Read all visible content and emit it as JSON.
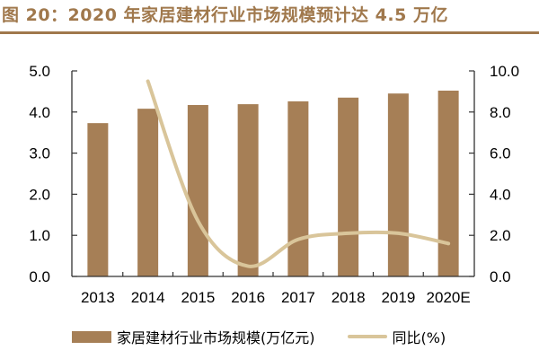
{
  "title": "图 20：2020 年家居建材行业市场规模预计达 4.5 万亿",
  "colors": {
    "bar": "#a67f56",
    "line": "#d9c59a",
    "title": "#a0784c"
  },
  "legend": {
    "bar_label": "家居建材行业市场规模(万亿元)",
    "line_label": "同比(%)"
  },
  "chart_data": {
    "type": "bar+line",
    "title": "2020 年家居建材行业市场规模预计达 4.5 万亿",
    "categories": [
      "2013",
      "2014",
      "2015",
      "2016",
      "2017",
      "2018",
      "2019",
      "2020E"
    ],
    "series": [
      {
        "name": "家居建材行业市场规模(万亿元)",
        "type": "bar",
        "axis": "left",
        "values": [
          3.73,
          4.08,
          4.17,
          4.19,
          4.26,
          4.35,
          4.45,
          4.52
        ]
      },
      {
        "name": "同比(%)",
        "type": "line",
        "axis": "right",
        "values": [
          null,
          9.5,
          2.7,
          0.5,
          1.8,
          2.1,
          2.1,
          1.6
        ]
      }
    ],
    "left_axis": {
      "ylim": [
        0,
        5
      ],
      "ticks": [
        "0.0",
        "1.0",
        "2.0",
        "3.0",
        "4.0",
        "5.0"
      ]
    },
    "right_axis": {
      "ylim": [
        0,
        10
      ],
      "ticks": [
        "0.0",
        "2.0",
        "4.0",
        "6.0",
        "8.0",
        "10.0"
      ]
    },
    "grid": false,
    "legend_position": "bottom"
  }
}
